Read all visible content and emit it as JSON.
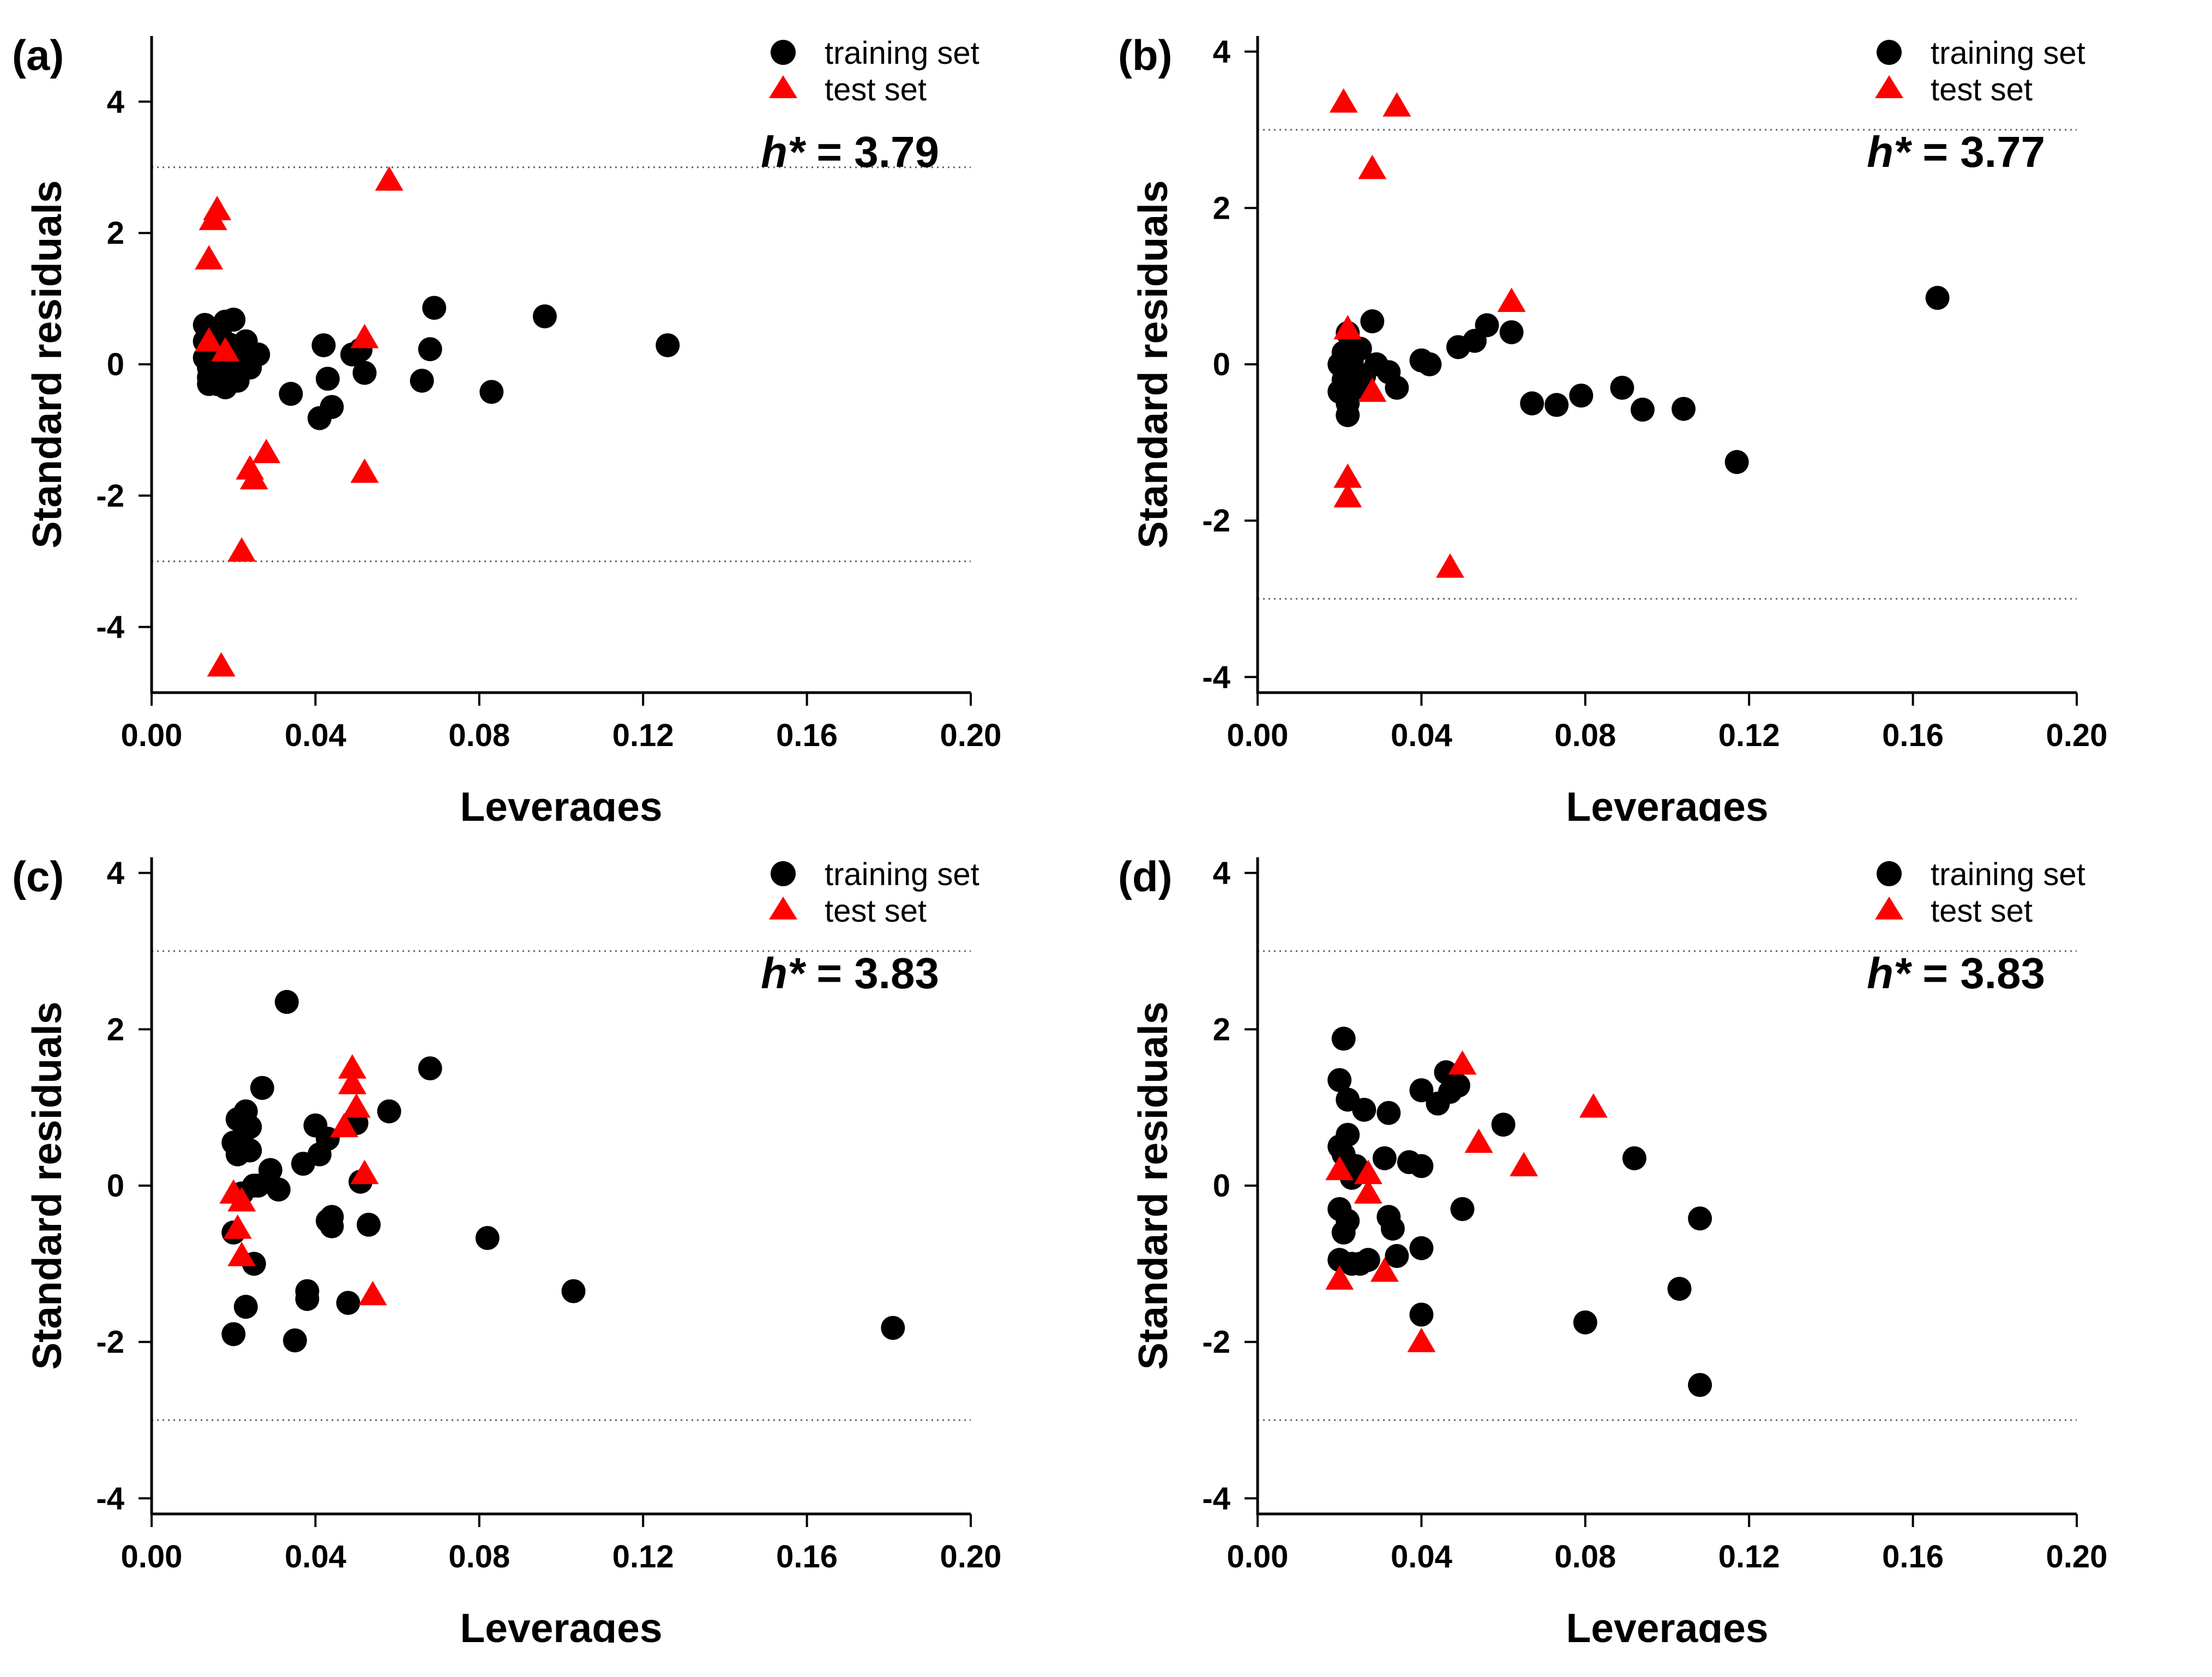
{
  "colors": {
    "training": "#000000",
    "test": "#ff0000",
    "axis": "#000000",
    "threshold": "#606060"
  },
  "chart_data": [
    {
      "type": "scatter",
      "panel_label": "(a)",
      "xlabel": "Leverages",
      "ylabel": "Standard residuals",
      "xlim": [
        0,
        0.2
      ],
      "ylim": [
        -5,
        5
      ],
      "x_ticks": [
        0,
        0.04,
        0.08,
        0.12,
        0.16,
        0.2
      ],
      "x_tick_labels": [
        "0.00",
        "0.04",
        "0.08",
        "0.12",
        "0.16",
        "0.20"
      ],
      "y_ticks": [
        -4,
        -2,
        0,
        2,
        4
      ],
      "y_tick_labels": [
        "-4",
        "-2",
        "0",
        "2",
        "4"
      ],
      "threshold_lines": [
        3,
        -3
      ],
      "annotation": {
        "italic": "h*",
        "rest": " = 3.79"
      },
      "legend": [
        "training set",
        "test set"
      ],
      "series": [
        {
          "name": "training set",
          "marker": "circle",
          "points": [
            [
              0.013,
              0.6
            ],
            [
              0.013,
              0.35
            ],
            [
              0.013,
              0.1
            ],
            [
              0.014,
              -0.05
            ],
            [
              0.014,
              -0.2
            ],
            [
              0.014,
              -0.3
            ],
            [
              0.015,
              0.5
            ],
            [
              0.015,
              0.2
            ],
            [
              0.016,
              -0.1
            ],
            [
              0.016,
              -0.3
            ],
            [
              0.016,
              0.05
            ],
            [
              0.017,
              0.4
            ],
            [
              0.017,
              -0.2
            ],
            [
              0.018,
              0.65
            ],
            [
              0.018,
              -0.35
            ],
            [
              0.019,
              0.3
            ],
            [
              0.019,
              -0.15
            ],
            [
              0.02,
              0.68
            ],
            [
              0.02,
              0.1
            ],
            [
              0.021,
              -0.25
            ],
            [
              0.022,
              0.2
            ],
            [
              0.023,
              0.35
            ],
            [
              0.024,
              -0.05
            ],
            [
              0.026,
              0.15
            ],
            [
              0.034,
              -0.45
            ],
            [
              0.041,
              -0.82
            ],
            [
              0.042,
              0.29
            ],
            [
              0.043,
              -0.22
            ],
            [
              0.044,
              -0.65
            ],
            [
              0.049,
              0.15
            ],
            [
              0.051,
              0.22
            ],
            [
              0.052,
              -0.13
            ],
            [
              0.066,
              -0.25
            ],
            [
              0.068,
              0.23
            ],
            [
              0.069,
              0.86
            ],
            [
              0.083,
              -0.42
            ],
            [
              0.096,
              0.73
            ],
            [
              0.126,
              0.29
            ]
          ]
        },
        {
          "name": "test set",
          "marker": "triangle",
          "points": [
            [
              0.014,
              1.6
            ],
            [
              0.014,
              0.35
            ],
            [
              0.015,
              2.2
            ],
            [
              0.016,
              2.35
            ],
            [
              0.017,
              -4.6
            ],
            [
              0.018,
              0.2
            ],
            [
              0.022,
              -2.85
            ],
            [
              0.024,
              -1.6
            ],
            [
              0.025,
              -1.75
            ],
            [
              0.028,
              -1.35
            ],
            [
              0.052,
              0.4
            ],
            [
              0.052,
              -1.65
            ],
            [
              0.058,
              2.8
            ]
          ]
        }
      ]
    },
    {
      "type": "scatter",
      "panel_label": "(b)",
      "xlabel": "Leverages",
      "ylabel": "Standard residuals",
      "xlim": [
        0,
        0.2
      ],
      "ylim": [
        -4.2,
        4.2
      ],
      "x_ticks": [
        0,
        0.04,
        0.08,
        0.12,
        0.16,
        0.2
      ],
      "x_tick_labels": [
        "0.00",
        "0.04",
        "0.08",
        "0.12",
        "0.16",
        "0.20"
      ],
      "y_ticks": [
        -4,
        -2,
        0,
        2,
        4
      ],
      "y_tick_labels": [
        "-4",
        "-2",
        "0",
        "2",
        "4"
      ],
      "threshold_lines": [
        3,
        -3
      ],
      "annotation": {
        "italic": "h*",
        "rest": " = 3.77"
      },
      "legend": [
        "training set",
        "test set"
      ],
      "series": [
        {
          "name": "training set",
          "marker": "circle",
          "points": [
            [
              0.02,
              -0.35
            ],
            [
              0.02,
              0.0
            ],
            [
              0.021,
              -0.2
            ],
            [
              0.021,
              0.15
            ],
            [
              0.022,
              -0.5
            ],
            [
              0.022,
              -0.65
            ],
            [
              0.022,
              0.4
            ],
            [
              0.023,
              0.05
            ],
            [
              0.024,
              -0.3
            ],
            [
              0.024,
              -0.1
            ],
            [
              0.025,
              0.2
            ],
            [
              0.026,
              -0.15
            ],
            [
              0.028,
              0.55
            ],
            [
              0.029,
              0.0
            ],
            [
              0.032,
              -0.1
            ],
            [
              0.034,
              -0.3
            ],
            [
              0.04,
              0.05
            ],
            [
              0.042,
              0.0
            ],
            [
              0.049,
              0.22
            ],
            [
              0.053,
              0.3
            ],
            [
              0.056,
              0.5
            ],
            [
              0.062,
              0.41
            ],
            [
              0.067,
              -0.5
            ],
            [
              0.073,
              -0.52
            ],
            [
              0.079,
              -0.4
            ],
            [
              0.089,
              -0.3
            ],
            [
              0.094,
              -0.58
            ],
            [
              0.104,
              -0.57
            ],
            [
              0.117,
              -1.25
            ],
            [
              0.166,
              0.85
            ]
          ]
        },
        {
          "name": "test set",
          "marker": "triangle",
          "points": [
            [
              0.021,
              3.35
            ],
            [
              0.022,
              0.45
            ],
            [
              0.022,
              -1.45
            ],
            [
              0.022,
              -1.7
            ],
            [
              0.028,
              -0.35
            ],
            [
              0.028,
              2.5
            ],
            [
              0.034,
              3.3
            ],
            [
              0.047,
              -2.6
            ],
            [
              0.062,
              0.8
            ]
          ]
        }
      ]
    },
    {
      "type": "scatter",
      "panel_label": "(c)",
      "xlabel": "Leverages",
      "ylabel": "Standard residuals",
      "xlim": [
        0,
        0.2
      ],
      "ylim": [
        -4.2,
        4.2
      ],
      "x_ticks": [
        0,
        0.04,
        0.08,
        0.12,
        0.16,
        0.2
      ],
      "x_tick_labels": [
        "0.00",
        "0.04",
        "0.08",
        "0.12",
        "0.16",
        "0.20"
      ],
      "y_ticks": [
        -4,
        -2,
        0,
        2,
        4
      ],
      "y_tick_labels": [
        "-4",
        "-2",
        "0",
        "2",
        "4"
      ],
      "threshold_lines": [
        3,
        -3
      ],
      "annotation": {
        "italic": "h*",
        "rest": " = 3.83"
      },
      "legend": [
        "training set",
        "test set"
      ],
      "series": [
        {
          "name": "training set",
          "marker": "circle",
          "points": [
            [
              0.02,
              -1.9
            ],
            [
              0.02,
              -0.6
            ],
            [
              0.02,
              0.55
            ],
            [
              0.021,
              0.85
            ],
            [
              0.021,
              0.4
            ],
            [
              0.022,
              -0.1
            ],
            [
              0.022,
              0.6
            ],
            [
              0.023,
              -1.55
            ],
            [
              0.023,
              0.95
            ],
            [
              0.024,
              0.45
            ],
            [
              0.024,
              0.75
            ],
            [
              0.025,
              0.0
            ],
            [
              0.025,
              -1.0
            ],
            [
              0.026,
              0.0
            ],
            [
              0.027,
              1.25
            ],
            [
              0.029,
              0.2
            ],
            [
              0.031,
              -0.05
            ],
            [
              0.033,
              2.35
            ],
            [
              0.035,
              -1.98
            ],
            [
              0.037,
              0.28
            ],
            [
              0.038,
              -1.35
            ],
            [
              0.038,
              -1.45
            ],
            [
              0.04,
              0.77
            ],
            [
              0.041,
              0.4
            ],
            [
              0.043,
              0.6
            ],
            [
              0.043,
              -0.45
            ],
            [
              0.044,
              -0.52
            ],
            [
              0.044,
              -0.4
            ],
            [
              0.048,
              -1.5
            ],
            [
              0.05,
              0.8
            ],
            [
              0.051,
              0.05
            ],
            [
              0.053,
              -0.5
            ],
            [
              0.058,
              0.95
            ],
            [
              0.068,
              1.5
            ],
            [
              0.082,
              -0.67
            ],
            [
              0.103,
              -1.35
            ],
            [
              0.181,
              -1.82
            ]
          ]
        },
        {
          "name": "test set",
          "marker": "triangle",
          "points": [
            [
              0.02,
              -0.1
            ],
            [
              0.021,
              -0.55
            ],
            [
              0.022,
              -0.9
            ],
            [
              0.022,
              -0.2
            ],
            [
              0.047,
              0.75
            ],
            [
              0.049,
              1.5
            ],
            [
              0.049,
              1.3
            ],
            [
              0.05,
              1.0
            ],
            [
              0.052,
              0.15
            ],
            [
              0.054,
              -1.4
            ]
          ]
        }
      ]
    },
    {
      "type": "scatter",
      "panel_label": "(d)",
      "xlabel": "Leverages",
      "ylabel": "Standard residuals",
      "xlim": [
        0,
        0.2
      ],
      "ylim": [
        -4.2,
        4.2
      ],
      "x_ticks": [
        0,
        0.04,
        0.08,
        0.12,
        0.16,
        0.2
      ],
      "x_tick_labels": [
        "0.00",
        "0.04",
        "0.08",
        "0.12",
        "0.16",
        "0.20"
      ],
      "y_ticks": [
        -4,
        -2,
        0,
        2,
        4
      ],
      "y_tick_labels": [
        "-4",
        "-2",
        "0",
        "2",
        "4"
      ],
      "threshold_lines": [
        3,
        -3
      ],
      "annotation": {
        "italic": "h*",
        "rest": " = 3.83"
      },
      "legend": [
        "training set",
        "test set"
      ],
      "series": [
        {
          "name": "training set",
          "marker": "circle",
          "points": [
            [
              0.02,
              1.35
            ],
            [
              0.02,
              0.5
            ],
            [
              0.02,
              -0.3
            ],
            [
              0.02,
              -0.95
            ],
            [
              0.021,
              1.88
            ],
            [
              0.021,
              0.4
            ],
            [
              0.021,
              -0.6
            ],
            [
              0.022,
              1.1
            ],
            [
              0.022,
              0.65
            ],
            [
              0.022,
              -0.45
            ],
            [
              0.023,
              0.1
            ],
            [
              0.023,
              -1.0
            ],
            [
              0.024,
              0.25
            ],
            [
              0.025,
              -1.0
            ],
            [
              0.026,
              0.97
            ],
            [
              0.027,
              -0.95
            ],
            [
              0.031,
              0.35
            ],
            [
              0.032,
              0.93
            ],
            [
              0.032,
              -0.4
            ],
            [
              0.033,
              -0.55
            ],
            [
              0.034,
              -0.9
            ],
            [
              0.037,
              0.3
            ],
            [
              0.04,
              1.22
            ],
            [
              0.04,
              0.25
            ],
            [
              0.04,
              -0.8
            ],
            [
              0.04,
              -1.65
            ],
            [
              0.044,
              1.05
            ],
            [
              0.046,
              1.45
            ],
            [
              0.047,
              1.2
            ],
            [
              0.049,
              1.28
            ],
            [
              0.05,
              -0.3
            ],
            [
              0.06,
              0.78
            ],
            [
              0.08,
              -1.75
            ],
            [
              0.092,
              0.35
            ],
            [
              0.103,
              -1.32
            ],
            [
              0.108,
              -0.42
            ],
            [
              0.108,
              -2.55
            ]
          ]
        },
        {
          "name": "test set",
          "marker": "triangle",
          "points": [
            [
              0.02,
              0.2
            ],
            [
              0.02,
              -1.2
            ],
            [
              0.027,
              0.15
            ],
            [
              0.027,
              -0.1
            ],
            [
              0.031,
              -1.1
            ],
            [
              0.04,
              -2.0
            ],
            [
              0.05,
              1.55
            ],
            [
              0.054,
              0.55
            ],
            [
              0.065,
              0.25
            ],
            [
              0.082,
              1.0
            ]
          ]
        }
      ]
    }
  ]
}
